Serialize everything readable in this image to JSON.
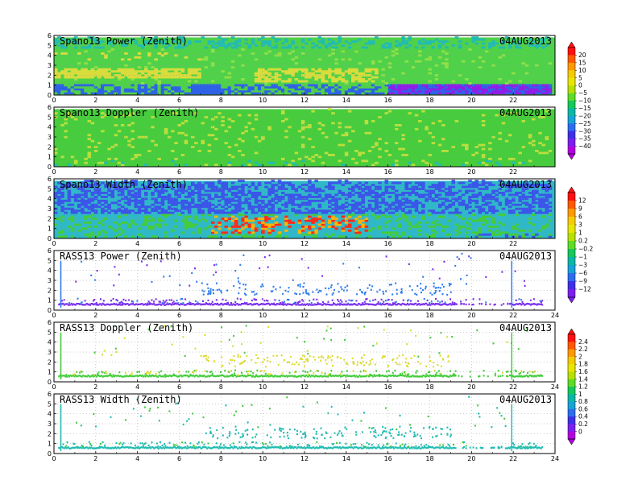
{
  "chart_data": [
    {
      "type": "heatmap",
      "title": "Spano13 Power (Zenith)",
      "date": "04AUG2013",
      "x_ticks": [
        "0",
        "2",
        "4",
        "6",
        "8",
        "10",
        "12",
        "14",
        "16",
        "18",
        "20",
        "22"
      ],
      "y_ticks": [
        "0",
        "1",
        "2",
        "3",
        "4",
        "5",
        "6"
      ],
      "xlim": [
        0,
        24
      ],
      "ylim": [
        0,
        6
      ],
      "grid": true,
      "colorbar": "A"
    },
    {
      "type": "heatmap",
      "title": "Spano13 Doppler (Zenith)",
      "date": "04AUG2013",
      "x_ticks": [
        "0",
        "2",
        "4",
        "6",
        "8",
        "10",
        "12",
        "14",
        "16",
        "18",
        "20",
        "22"
      ],
      "y_ticks": [
        "0",
        "1",
        "2",
        "3",
        "4",
        "5",
        "6"
      ],
      "xlim": [
        0,
        24
      ],
      "ylim": [
        0,
        6
      ],
      "grid": true,
      "colorbar": "A"
    },
    {
      "type": "heatmap",
      "title": "Spano13 Width (Zenith)",
      "date": "04AUG2013",
      "x_ticks": [
        "0",
        "2",
        "4",
        "6",
        "8",
        "10",
        "12",
        "14",
        "16",
        "18",
        "20",
        "22"
      ],
      "y_ticks": [
        "0",
        "1",
        "2",
        "3",
        "4",
        "5",
        "6"
      ],
      "xlim": [
        0,
        24
      ],
      "ylim": [
        0,
        6
      ],
      "grid": true,
      "colorbar": "B"
    },
    {
      "type": "scatter",
      "title": "RASS13 Power (Zenith)",
      "date": "04AUG2013",
      "x_ticks": [
        "0",
        "2",
        "4",
        "6",
        "8",
        "10",
        "12",
        "14",
        "16",
        "18",
        "20",
        "22",
        "24"
      ],
      "y_ticks": [
        "0",
        "1",
        "2",
        "3",
        "4",
        "5",
        "6"
      ],
      "xlim": [
        0,
        24
      ],
      "ylim": [
        0,
        6
      ],
      "grid": true,
      "colorbar": "B"
    },
    {
      "type": "scatter",
      "title": "RASS13 Doppler (Zenith)",
      "date": "04AUG2013",
      "x_ticks": [
        "0",
        "2",
        "4",
        "6",
        "8",
        "10",
        "12",
        "14",
        "16",
        "18",
        "20",
        "22",
        "24"
      ],
      "y_ticks": [
        "0",
        "1",
        "2",
        "3",
        "4",
        "5",
        "6"
      ],
      "xlim": [
        0,
        24
      ],
      "ylim": [
        0,
        6
      ],
      "grid": true,
      "colorbar": "C"
    },
    {
      "type": "scatter",
      "title": "RASS13 Width (Zenith)",
      "date": "04AUG2013",
      "x_ticks": [
        "0",
        "2",
        "4",
        "6",
        "8",
        "10",
        "12",
        "14",
        "16",
        "18",
        "20",
        "22",
        "24"
      ],
      "y_ticks": [
        "0",
        "1",
        "2",
        "3",
        "4",
        "5",
        "6"
      ],
      "xlim": [
        0,
        24
      ],
      "ylim": [
        0,
        6
      ],
      "grid": true,
      "colorbar": "C"
    }
  ],
  "colorbars": {
    "A": {
      "labels": [
        "20",
        "15",
        "10",
        "5",
        "0",
        "−5",
        "−10",
        "−15",
        "−20",
        "−25",
        "−30",
        "−35",
        "−40"
      ],
      "colors": [
        "#ff1010",
        "#ff5a00",
        "#ff9b00",
        "#f5cc00",
        "#e9e600",
        "#b8e000",
        "#5fdc28",
        "#16c95a",
        "#0bb8a6",
        "#17a2d8",
        "#2c6df0",
        "#3d30e8",
        "#7b1ff0",
        "#b400e0"
      ]
    },
    "B": {
      "labels": [
        "12",
        "9",
        "6",
        "3",
        "1",
        "0.2",
        "−0.2",
        "−1",
        "−3",
        "−6",
        "−9",
        "−12"
      ],
      "colors": [
        "#ff1010",
        "#ff5a00",
        "#ff9b00",
        "#f5cc00",
        "#e9e600",
        "#b8e000",
        "#5fdc28",
        "#16c95a",
        "#0bb8a6",
        "#17a2d8",
        "#2c6df0",
        "#3d30e8",
        "#7b1ff0"
      ]
    },
    "C": {
      "labels": [
        "2.4",
        "2.2",
        "2",
        "1.8",
        "1.6",
        "1.4",
        "1.2",
        "1",
        "0.8",
        "0.6",
        "0.4",
        "0.2",
        "0"
      ],
      "colors": [
        "#ff1010",
        "#ff5a00",
        "#ff9b00",
        "#f5cc00",
        "#e9e600",
        "#b8e000",
        "#5fdc28",
        "#16c95a",
        "#0bb8a6",
        "#17a2d8",
        "#2c6df0",
        "#3d30e8",
        "#7b1ff0",
        "#b400e0"
      ]
    }
  },
  "palette": {
    "power_bg": "#4fd14a",
    "power_band_yellow": "#d8dc3c",
    "power_low_blue": "#2f62e6",
    "power_low_purple": "#8e1ee8",
    "doppler_bg": "#46cc3c",
    "doppler_streak": "#b9de3e",
    "width_bg": "#2fb9c8",
    "width_blue": "#3b56e8",
    "width_red": "#ff2a1a",
    "rass_purple": "#7a2fee",
    "rass_blue": "#2f7df0",
    "rass_green": "#44cc3c",
    "rass_yellow": "#dcdc32",
    "rass_teal": "#22bcb2"
  }
}
